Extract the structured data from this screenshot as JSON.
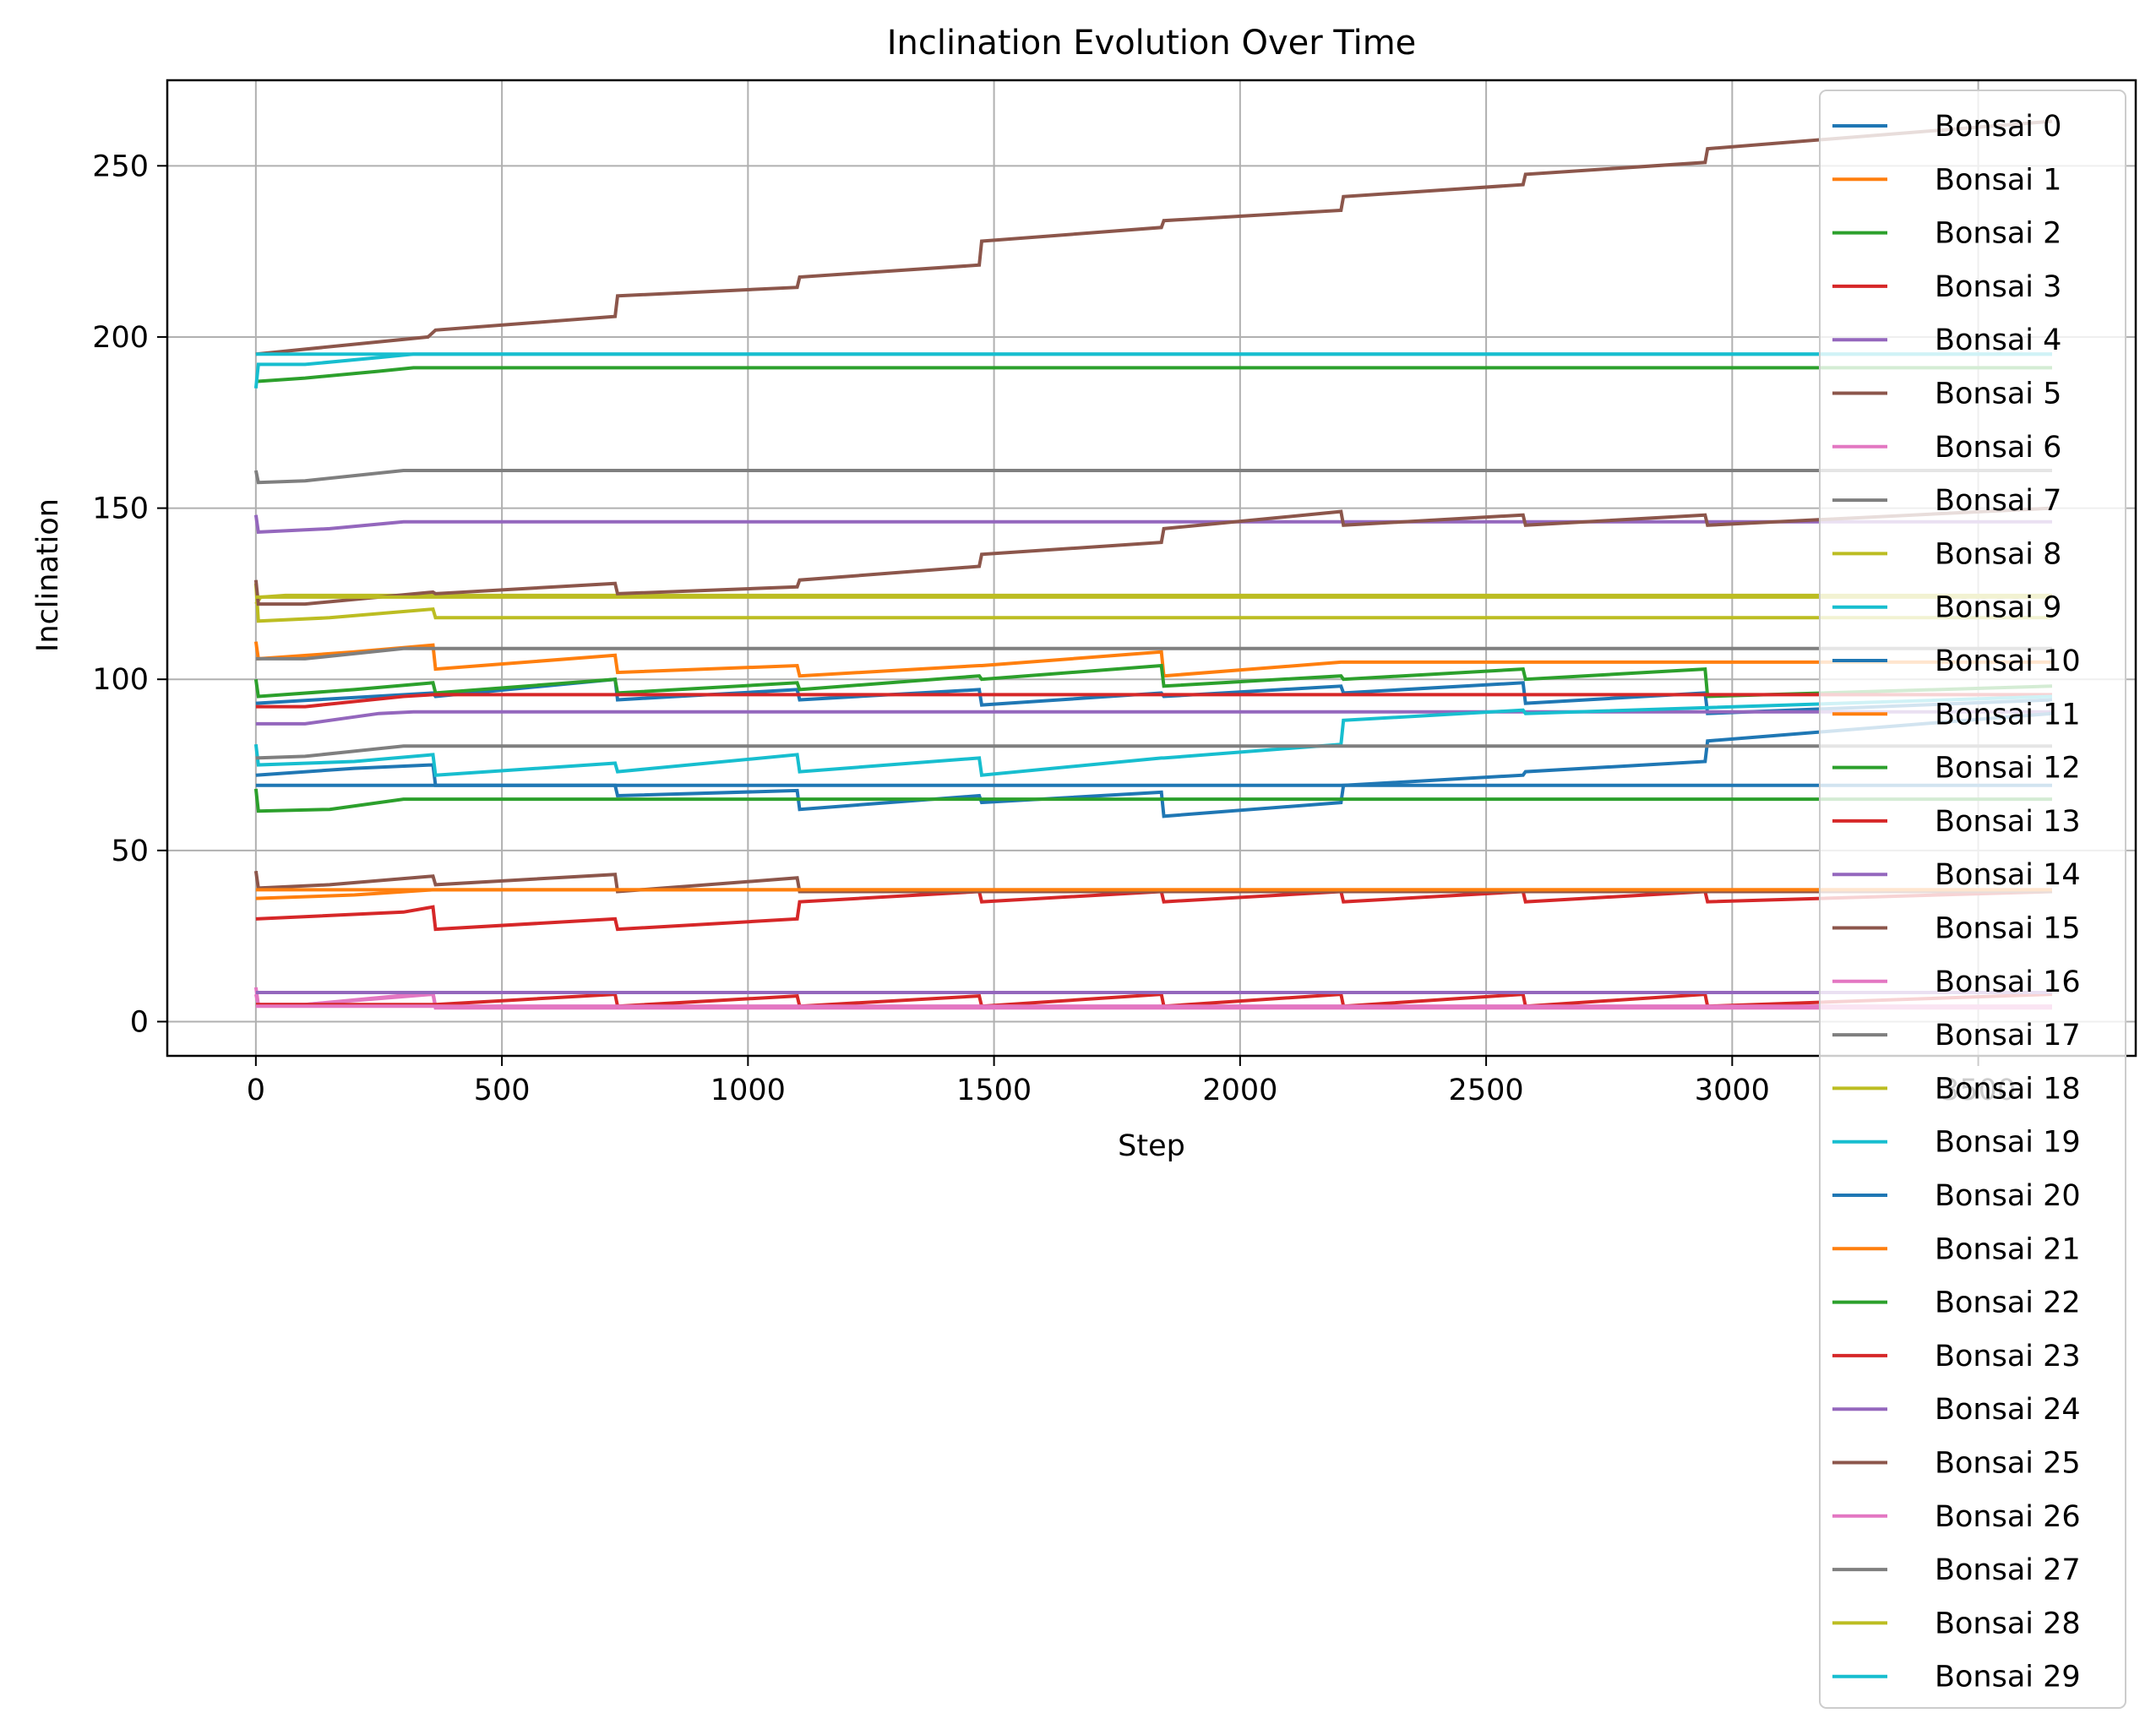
{
  "chart_data": {
    "type": "line",
    "title": "Inclination Evolution Over Time",
    "xlabel": "Step",
    "ylabel": "Inclination",
    "xlim": [
      -180,
      3820
    ],
    "ylim": [
      -10,
      275
    ],
    "xticks": [
      0,
      500,
      1000,
      1500,
      2000,
      2500,
      3000,
      3500
    ],
    "xtick_labels": [
      "0",
      "500",
      "1000",
      "1500",
      "2000",
      "2500",
      "3000",
      "3500"
    ],
    "yticks": [
      0,
      50,
      100,
      150,
      200,
      250
    ],
    "ytick_labels": [
      "0",
      "50",
      "100",
      "150",
      "200",
      "250"
    ],
    "grid": true,
    "legend_position": "upper right",
    "x_max": 3650,
    "series": [
      {
        "name": "Bonsai 0",
        "color": "#1f77b4",
        "points": [
          [
            0,
            72
          ],
          [
            200,
            74
          ],
          [
            360,
            75
          ],
          [
            365,
            69
          ],
          [
            3650,
            69
          ]
        ]
      },
      {
        "name": "Bonsai 1",
        "color": "#ff7f0e",
        "points": [
          [
            0,
            36
          ],
          [
            200,
            37
          ],
          [
            360,
            38.5
          ],
          [
            3650,
            38.5
          ]
        ]
      },
      {
        "name": "Bonsai 2",
        "color": "#2ca02c",
        "points": [
          [
            0,
            187
          ],
          [
            100,
            188
          ],
          [
            250,
            190
          ],
          [
            320,
            191
          ],
          [
            3650,
            191
          ]
        ]
      },
      {
        "name": "Bonsai 3",
        "color": "#d62728",
        "points": [
          [
            0,
            30
          ],
          [
            300,
            32
          ],
          [
            360,
            33.5
          ],
          [
            365,
            27
          ],
          [
            730,
            30
          ],
          [
            735,
            27
          ],
          [
            1100,
            30
          ],
          [
            1105,
            35
          ],
          [
            1470,
            38
          ],
          [
            1475,
            35
          ],
          [
            1840,
            38
          ],
          [
            1845,
            35
          ],
          [
            2205,
            38
          ],
          [
            2210,
            35
          ],
          [
            2575,
            38
          ],
          [
            2580,
            35
          ],
          [
            2945,
            38
          ],
          [
            2950,
            35
          ],
          [
            3650,
            38
          ]
        ]
      },
      {
        "name": "Bonsai 4",
        "color": "#9467bd",
        "points": [
          [
            0,
            148
          ],
          [
            5,
            143
          ],
          [
            150,
            144
          ],
          [
            300,
            146
          ],
          [
            3650,
            146
          ]
        ]
      },
      {
        "name": "Bonsai 5",
        "color": "#8c564b",
        "points": [
          [
            0,
            195
          ],
          [
            350,
            200
          ],
          [
            365,
            202
          ],
          [
            730,
            206
          ],
          [
            735,
            212
          ],
          [
            1100,
            214.5
          ],
          [
            1105,
            217.5
          ],
          [
            1470,
            221
          ],
          [
            1475,
            228
          ],
          [
            1840,
            232
          ],
          [
            1845,
            234
          ],
          [
            2205,
            237
          ],
          [
            2210,
            241
          ],
          [
            2575,
            244.5
          ],
          [
            2580,
            247.5
          ],
          [
            2945,
            251
          ],
          [
            2950,
            255
          ],
          [
            3650,
            263
          ]
        ]
      },
      {
        "name": "Bonsai 6",
        "color": "#e377c2",
        "points": [
          [
            0,
            8
          ],
          [
            5,
            5
          ],
          [
            100,
            5
          ],
          [
            360,
            8.5
          ],
          [
            365,
            4.5
          ],
          [
            3650,
            4.5
          ]
        ]
      },
      {
        "name": "Bonsai 7",
        "color": "#7f7f7f",
        "points": [
          [
            0,
            161
          ],
          [
            5,
            157.5
          ],
          [
            100,
            158
          ],
          [
            300,
            161
          ],
          [
            3650,
            161
          ]
        ]
      },
      {
        "name": "Bonsai 8",
        "color": "#bcbd22",
        "points": [
          [
            0,
            122
          ],
          [
            10,
            124
          ],
          [
            60,
            124.5
          ],
          [
            3650,
            124.5
          ]
        ]
      },
      {
        "name": "Bonsai 9",
        "color": "#17becf",
        "points": [
          [
            0,
            185
          ],
          [
            5,
            192
          ],
          [
            100,
            192
          ],
          [
            250,
            194
          ],
          [
            320,
            195
          ],
          [
            3650,
            195
          ]
        ]
      },
      {
        "name": "Bonsai 10",
        "color": "#1f77b4",
        "points": [
          [
            0,
            93
          ],
          [
            360,
            96
          ],
          [
            365,
            95
          ],
          [
            730,
            100
          ],
          [
            735,
            94
          ],
          [
            1100,
            97
          ],
          [
            1105,
            94
          ],
          [
            1470,
            97
          ],
          [
            1475,
            92.5
          ],
          [
            1840,
            96
          ],
          [
            1845,
            95
          ],
          [
            2205,
            98
          ],
          [
            2210,
            96
          ],
          [
            2575,
            99
          ],
          [
            2580,
            93
          ],
          [
            2945,
            96
          ],
          [
            2950,
            90
          ],
          [
            3650,
            94
          ]
        ]
      },
      {
        "name": "Bonsai 11",
        "color": "#ff7f0e",
        "points": [
          [
            0,
            111
          ],
          [
            5,
            106
          ],
          [
            200,
            108
          ],
          [
            360,
            110
          ],
          [
            365,
            103
          ],
          [
            730,
            107
          ],
          [
            735,
            102
          ],
          [
            1100,
            104
          ],
          [
            1105,
            101
          ],
          [
            1470,
            104
          ],
          [
            1475,
            104
          ],
          [
            1840,
            108
          ],
          [
            1845,
            101
          ],
          [
            2205,
            105
          ],
          [
            2210,
            105
          ],
          [
            3650,
            105
          ]
        ]
      },
      {
        "name": "Bonsai 12",
        "color": "#2ca02c",
        "points": [
          [
            0,
            100
          ],
          [
            5,
            95
          ],
          [
            200,
            97
          ],
          [
            360,
            99
          ],
          [
            365,
            96
          ],
          [
            730,
            100
          ],
          [
            735,
            96
          ],
          [
            1100,
            99
          ],
          [
            1105,
            97
          ],
          [
            1470,
            101
          ],
          [
            1475,
            100
          ],
          [
            1840,
            104
          ],
          [
            1845,
            98
          ],
          [
            2205,
            101
          ],
          [
            2210,
            100
          ],
          [
            2575,
            103
          ],
          [
            2580,
            100
          ],
          [
            2945,
            103
          ],
          [
            2950,
            95
          ],
          [
            3650,
            98
          ]
        ]
      },
      {
        "name": "Bonsai 13",
        "color": "#d62728",
        "points": [
          [
            0,
            92
          ],
          [
            100,
            92
          ],
          [
            300,
            95
          ],
          [
            360,
            95.5
          ],
          [
            3650,
            95.5
          ]
        ]
      },
      {
        "name": "Bonsai 14",
        "color": "#9467bd",
        "points": [
          [
            0,
            87
          ],
          [
            100,
            87
          ],
          [
            250,
            90
          ],
          [
            320,
            90.5
          ],
          [
            3650,
            90.5
          ]
        ]
      },
      {
        "name": "Bonsai 15",
        "color": "#8c564b",
        "points": [
          [
            0,
            44
          ],
          [
            5,
            39
          ],
          [
            150,
            40
          ],
          [
            360,
            42.5
          ],
          [
            365,
            40
          ],
          [
            730,
            43
          ],
          [
            735,
            38
          ],
          [
            1100,
            42
          ],
          [
            1105,
            38
          ],
          [
            1470,
            38
          ],
          [
            3650,
            38
          ]
        ]
      },
      {
        "name": "Bonsai 16",
        "color": "#e377c2",
        "points": [
          [
            0,
            10
          ],
          [
            5,
            5
          ],
          [
            100,
            5
          ],
          [
            360,
            8
          ],
          [
            365,
            4
          ],
          [
            3650,
            4
          ]
        ]
      },
      {
        "name": "Bonsai 17",
        "color": "#7f7f7f",
        "points": [
          [
            0,
            106
          ],
          [
            100,
            106
          ],
          [
            300,
            109
          ],
          [
            3650,
            109
          ]
        ]
      },
      {
        "name": "Bonsai 18",
        "color": "#bcbd22",
        "points": [
          [
            0,
            128
          ],
          [
            5,
            117
          ],
          [
            150,
            118
          ],
          [
            360,
            120.5
          ],
          [
            365,
            118
          ],
          [
            3650,
            118
          ]
        ]
      },
      {
        "name": "Bonsai 19",
        "color": "#17becf",
        "points": [
          [
            0,
            81
          ],
          [
            5,
            75
          ],
          [
            200,
            76
          ],
          [
            360,
            78
          ],
          [
            365,
            72
          ],
          [
            730,
            75.5
          ],
          [
            735,
            73
          ],
          [
            1100,
            78
          ],
          [
            1105,
            73
          ],
          [
            1470,
            77
          ],
          [
            1475,
            72
          ],
          [
            1840,
            77
          ],
          [
            1845,
            77
          ],
          [
            2205,
            81
          ],
          [
            2210,
            88
          ],
          [
            2575,
            91
          ],
          [
            2580,
            90
          ],
          [
            3650,
            95
          ]
        ]
      },
      {
        "name": "Bonsai 20",
        "color": "#1f77b4",
        "points": [
          [
            0,
            69
          ],
          [
            730,
            69
          ],
          [
            735,
            66
          ],
          [
            1100,
            67.5
          ],
          [
            1105,
            62
          ],
          [
            1470,
            66
          ],
          [
            1475,
            64
          ],
          [
            1840,
            67
          ],
          [
            1845,
            60
          ],
          [
            2205,
            64
          ],
          [
            2210,
            69
          ],
          [
            2575,
            72
          ],
          [
            2580,
            73
          ],
          [
            2945,
            76
          ],
          [
            2950,
            82
          ],
          [
            3650,
            90
          ]
        ]
      },
      {
        "name": "Bonsai 21",
        "color": "#ff7f0e",
        "points": [
          [
            0,
            38.5
          ],
          [
            3650,
            38.5
          ]
        ]
      },
      {
        "name": "Bonsai 22",
        "color": "#2ca02c",
        "points": [
          [
            0,
            68
          ],
          [
            5,
            61.5
          ],
          [
            150,
            62
          ],
          [
            300,
            65
          ],
          [
            3650,
            65
          ]
        ]
      },
      {
        "name": "Bonsai 23",
        "color": "#d62728",
        "points": [
          [
            0,
            5
          ],
          [
            365,
            5
          ],
          [
            730,
            8
          ],
          [
            735,
            4.5
          ],
          [
            1100,
            7.5
          ],
          [
            1105,
            4.5
          ],
          [
            1470,
            7.5
          ],
          [
            1475,
            4.5
          ],
          [
            1840,
            8
          ],
          [
            1845,
            4.5
          ],
          [
            2205,
            8
          ],
          [
            2210,
            4.5
          ],
          [
            2575,
            8
          ],
          [
            2580,
            4.5
          ],
          [
            2945,
            8
          ],
          [
            2950,
            4.5
          ],
          [
            3650,
            8
          ]
        ]
      },
      {
        "name": "Bonsai 24",
        "color": "#9467bd",
        "points": [
          [
            0,
            8.5
          ],
          [
            3650,
            8.5
          ]
        ]
      },
      {
        "name": "Bonsai 25",
        "color": "#8c564b",
        "points": [
          [
            0,
            129
          ],
          [
            5,
            122
          ],
          [
            100,
            122
          ],
          [
            360,
            125.5
          ],
          [
            365,
            125
          ],
          [
            730,
            128
          ],
          [
            735,
            125
          ],
          [
            1100,
            127
          ],
          [
            1105,
            129
          ],
          [
            1470,
            133
          ],
          [
            1475,
            136.5
          ],
          [
            1840,
            140
          ],
          [
            1845,
            144
          ],
          [
            2205,
            149
          ],
          [
            2210,
            145
          ],
          [
            2575,
            148
          ],
          [
            2580,
            145
          ],
          [
            2945,
            148
          ],
          [
            2950,
            145
          ],
          [
            3650,
            150
          ]
        ]
      },
      {
        "name": "Bonsai 26",
        "color": "#e377c2",
        "points": [
          [
            0,
            4.5
          ],
          [
            3650,
            4.5
          ]
        ]
      },
      {
        "name": "Bonsai 27",
        "color": "#7f7f7f",
        "points": [
          [
            0,
            77
          ],
          [
            100,
            77.5
          ],
          [
            300,
            80.5
          ],
          [
            3650,
            80.5
          ]
        ]
      },
      {
        "name": "Bonsai 28",
        "color": "#bcbd22",
        "points": [
          [
            0,
            124
          ],
          [
            3650,
            124
          ]
        ]
      },
      {
        "name": "Bonsai 29",
        "color": "#17becf",
        "points": [
          [
            0,
            195
          ],
          [
            3650,
            195
          ]
        ]
      }
    ]
  }
}
